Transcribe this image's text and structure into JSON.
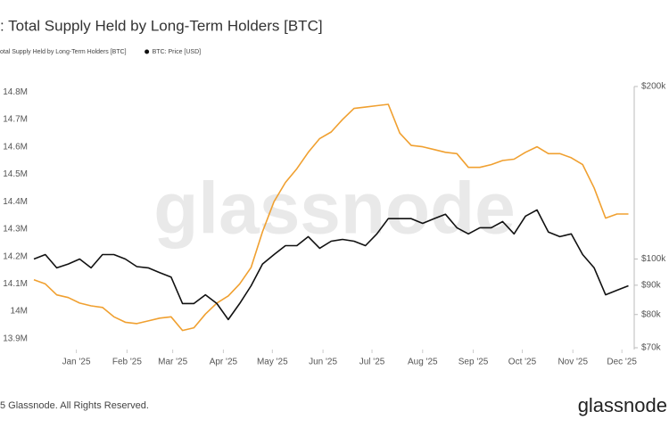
{
  "chart_data": {
    "type": "line",
    "title": ": Total Supply Held by Long-Term Holders [BTC]",
    "watermark": "glassnode",
    "footer": "5 Glassnode. All Rights Reserved.",
    "logo": "glassnode",
    "x": [
      -26,
      -19,
      -12,
      -5,
      2,
      9,
      16,
      23,
      30,
      37,
      44,
      51,
      58,
      65,
      72,
      79,
      86,
      93,
      100,
      107,
      114,
      121,
      128,
      135,
      142,
      149,
      156,
      163,
      170,
      177,
      184,
      191,
      198,
      205,
      212,
      219,
      226,
      233,
      240,
      247,
      254,
      261,
      268,
      275,
      282,
      289,
      296,
      303,
      310,
      317,
      324,
      331,
      338
    ],
    "xlim": [
      -26,
      341
    ],
    "xticks": [
      {
        "value": 0,
        "label": "Jan '25"
      },
      {
        "value": 31,
        "label": "Feb '25"
      },
      {
        "value": 59,
        "label": "Mar '25"
      },
      {
        "value": 90,
        "label": "Apr '25"
      },
      {
        "value": 120,
        "label": "May '25"
      },
      {
        "value": 151,
        "label": "Jun '25"
      },
      {
        "value": 181,
        "label": "Jul '25"
      },
      {
        "value": 212,
        "label": "Aug '25"
      },
      {
        "value": 243,
        "label": "Sep '25"
      },
      {
        "value": 273,
        "label": "Oct '25"
      },
      {
        "value": 304,
        "label": "Nov '25"
      },
      {
        "value": 334,
        "label": "Dec '25"
      }
    ],
    "ylim": [
      13867000,
      14820000
    ],
    "yticks": [
      {
        "value": 13900000,
        "label": "13.9M"
      },
      {
        "value": 14000000,
        "label": "14M"
      },
      {
        "value": 14100000,
        "label": "14.1M"
      },
      {
        "value": 14200000,
        "label": "14.2M"
      },
      {
        "value": 14300000,
        "label": "14.3M"
      },
      {
        "value": 14400000,
        "label": "14.4M"
      },
      {
        "value": 14500000,
        "label": "14.5M"
      },
      {
        "value": 14600000,
        "label": "14.6M"
      },
      {
        "value": 14700000,
        "label": "14.7M"
      },
      {
        "value": 14800000,
        "label": "14.8M"
      }
    ],
    "y2lim": [
      70000,
      200000
    ],
    "y2log": true,
    "y2ticks": [
      {
        "value": 70000,
        "label": "$70k"
      },
      {
        "value": 80000,
        "label": "$80k"
      },
      {
        "value": 90000,
        "label": "$90k"
      },
      {
        "value": 100000,
        "label": "$100k"
      },
      {
        "value": 200000,
        "label": "$200k"
      }
    ],
    "series": [
      {
        "name": "otal Supply Held by Long-Term Holders [BTC]",
        "color": "#f0a030",
        "values": [
          14115000,
          14100000,
          14060000,
          14050000,
          14030000,
          14020000,
          14014000,
          13980000,
          13960000,
          13955000,
          13965000,
          13975000,
          13980000,
          13930000,
          13940000,
          13990000,
          14030000,
          14056000,
          14100000,
          14160000,
          14290000,
          14400000,
          14470000,
          14520000,
          14580000,
          14630000,
          14654000,
          14700000,
          14740000,
          14745000,
          14750000,
          14755000,
          14650000,
          14605000,
          14600000,
          14590000,
          14580000,
          14575000,
          14525000,
          14525000,
          14535000,
          14550000,
          14555000,
          14580000,
          14600000,
          14575000,
          14575000,
          14560000,
          14535000,
          14450000,
          14340000,
          14355000,
          14355000
        ]
      },
      {
        "name": "BTC: Price [USD]",
        "color": "#111111",
        "axis": "y2",
        "values": [
          100000,
          101800,
          96500,
          98000,
          100000,
          96500,
          101800,
          101800,
          100000,
          97000,
          96500,
          94700,
          93000,
          83600,
          83600,
          86600,
          83600,
          78400,
          83600,
          89800,
          98000,
          101800,
          105500,
          105500,
          109400,
          104400,
          107400,
          108200,
          107400,
          105500,
          110600,
          117600,
          117600,
          117600,
          115400,
          117600,
          119700,
          113400,
          110600,
          113400,
          113400,
          116200,
          110600,
          118800,
          121800,
          111400,
          109400,
          110600,
          101800,
          96500,
          86600,
          88200,
          89800
        ]
      }
    ]
  }
}
